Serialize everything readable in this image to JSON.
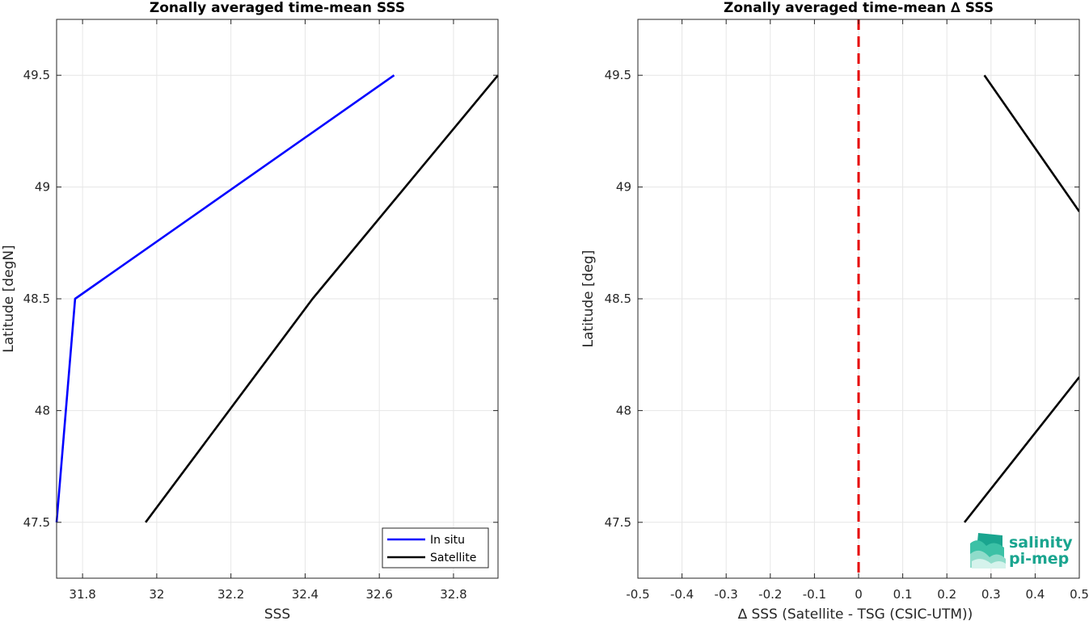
{
  "chart_data": [
    {
      "type": "line",
      "title": "Zonally averaged time-mean SSS",
      "xlabel": "SSS",
      "ylabel": "Latitude [degN]",
      "xlim": [
        31.73,
        32.92
      ],
      "ylim": [
        47.25,
        49.75
      ],
      "xticks": [
        31.8,
        32,
        32.2,
        32.4,
        32.6,
        32.8
      ],
      "xtick_labels": [
        "31.8",
        "32",
        "32.2",
        "32.4",
        "32.6",
        "32.8"
      ],
      "yticks": [
        47.5,
        48,
        48.5,
        49,
        49.5
      ],
      "ytick_labels": [
        "47.5",
        "48",
        "48.5",
        "49",
        "49.5"
      ],
      "grid": true,
      "legend": "bottom-right",
      "series": [
        {
          "name": "In situ",
          "color": "#0000ff",
          "x": [
            31.73,
            31.78,
            32.64
          ],
          "y": [
            47.5,
            48.5,
            49.5
          ]
        },
        {
          "name": "Satellite",
          "color": "#000000",
          "x": [
            31.97,
            32.42,
            32.92
          ],
          "y": [
            47.5,
            48.5,
            49.5
          ]
        }
      ]
    },
    {
      "type": "line",
      "title": "Zonally averaged time-mean ∆ SSS",
      "xlabel": "∆ SSS (Satellite - TSG (CSIC-UTM))",
      "ylabel": "Latitude [deg]",
      "xlim": [
        -0.5,
        0.5
      ],
      "ylim": [
        47.25,
        49.75
      ],
      "xticks": [
        -0.5,
        -0.4,
        -0.3,
        -0.2,
        -0.1,
        0,
        0.1,
        0.2,
        0.3,
        0.4,
        0.5
      ],
      "xtick_labels": [
        "-0.5",
        "-0.4",
        "-0.3",
        "-0.2",
        "-0.1",
        "0",
        "0.1",
        "0.2",
        "0.3",
        "0.4",
        "0.5"
      ],
      "yticks": [
        47.5,
        48,
        48.5,
        49,
        49.5
      ],
      "ytick_labels": [
        "47.5",
        "48",
        "48.5",
        "49",
        "49.5"
      ],
      "grid": true,
      "reference_line": {
        "x": 0,
        "color": "#e60000",
        "style": "dashed"
      },
      "series": [
        {
          "color": "#000000",
          "x": [
            0.24,
            0.5
          ],
          "y": [
            47.5,
            48.15
          ],
          "clipped": true
        },
        {
          "color": "#000000",
          "x": [
            0.5,
            0.285
          ],
          "y": [
            48.89,
            49.5
          ],
          "clipped": true
        }
      ]
    }
  ],
  "logo": {
    "line1": "salinity",
    "line2": "pi-mep",
    "color": "#1aa58f"
  }
}
